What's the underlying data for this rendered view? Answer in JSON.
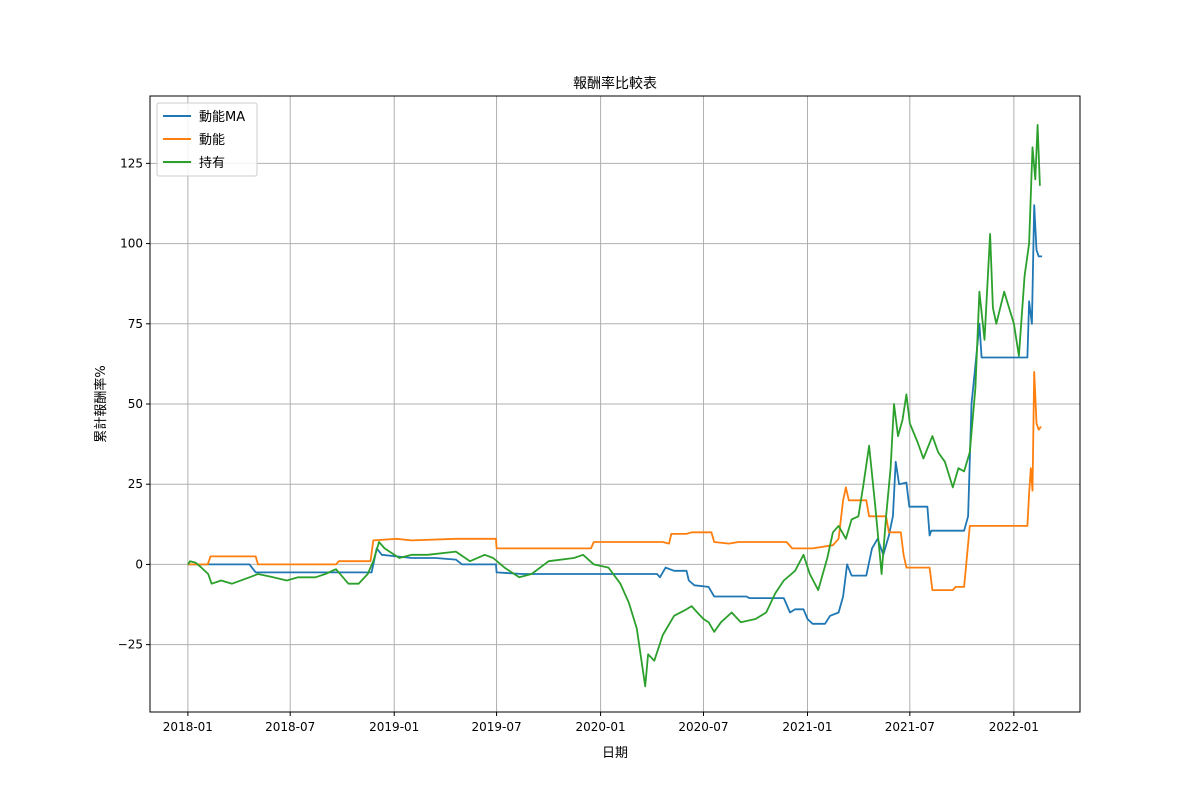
{
  "chart_data": {
    "type": "line",
    "title": "報酬率比較表",
    "xlabel": "日期",
    "ylabel": "累計報酬率%",
    "xlim": [
      "2017-10-26",
      "2022-04-28"
    ],
    "ylim": [
      -46,
      146
    ],
    "x_ticks": [
      "2018-01",
      "2018-07",
      "2019-01",
      "2019-07",
      "2020-01",
      "2020-07",
      "2021-01",
      "2021-07",
      "2022-01"
    ],
    "y_ticks": [
      -25,
      0,
      25,
      50,
      75,
      100,
      125
    ],
    "grid": true,
    "legend_position": "top-left",
    "series": [
      {
        "name": "動能MA",
        "color": "#1f77b4",
        "points": [
          [
            "2018-01-01",
            0
          ],
          [
            "2018-02-10",
            0
          ],
          [
            "2018-04-20",
            0
          ],
          [
            "2018-05-01",
            -2.5
          ],
          [
            "2018-10-20",
            -2.5
          ],
          [
            "2018-11-22",
            -2.5
          ],
          [
            "2018-12-01",
            5
          ],
          [
            "2018-12-10",
            3
          ],
          [
            "2019-01-05",
            2.5
          ],
          [
            "2019-02-01",
            2
          ],
          [
            "2019-03-15",
            2
          ],
          [
            "2019-04-20",
            1.5
          ],
          [
            "2019-05-01",
            0
          ],
          [
            "2019-06-30",
            0
          ],
          [
            "2019-07-01",
            -2.5
          ],
          [
            "2019-08-15",
            -3
          ],
          [
            "2020-01-01",
            -3
          ],
          [
            "2020-04-10",
            -3
          ],
          [
            "2020-04-15",
            -4
          ],
          [
            "2020-04-25",
            -1
          ],
          [
            "2020-05-10",
            -2
          ],
          [
            "2020-06-01",
            -2
          ],
          [
            "2020-06-05",
            -5
          ],
          [
            "2020-06-15",
            -6.5
          ],
          [
            "2020-07-10",
            -7
          ],
          [
            "2020-07-20",
            -10
          ],
          [
            "2020-09-15",
            -10
          ],
          [
            "2020-09-20",
            -10.5
          ],
          [
            "2020-11-20",
            -10.5
          ],
          [
            "2020-12-01",
            -15
          ],
          [
            "2020-12-10",
            -14
          ],
          [
            "2020-12-25",
            -14
          ],
          [
            "2021-01-01",
            -17
          ],
          [
            "2021-01-10",
            -18.5
          ],
          [
            "2021-02-01",
            -18.5
          ],
          [
            "2021-02-10",
            -16
          ],
          [
            "2021-02-25",
            -15
          ],
          [
            "2021-03-05",
            -10
          ],
          [
            "2021-03-12",
            0
          ],
          [
            "2021-03-20",
            -3.5
          ],
          [
            "2021-04-15",
            -3.5
          ],
          [
            "2021-04-25",
            5
          ],
          [
            "2021-05-05",
            8
          ],
          [
            "2021-05-15",
            3
          ],
          [
            "2021-05-25",
            9
          ],
          [
            "2021-06-01",
            15
          ],
          [
            "2021-06-06",
            32
          ],
          [
            "2021-06-12",
            25
          ],
          [
            "2021-06-25",
            25.5
          ],
          [
            "2021-06-30",
            18
          ],
          [
            "2021-08-01",
            18
          ],
          [
            "2021-08-05",
            9
          ],
          [
            "2021-08-08",
            10.5
          ],
          [
            "2021-10-05",
            10.5
          ],
          [
            "2021-10-12",
            15
          ],
          [
            "2021-10-18",
            50
          ],
          [
            "2021-10-25",
            62
          ],
          [
            "2021-11-01",
            75
          ],
          [
            "2021-11-05",
            64.5
          ],
          [
            "2022-01-25",
            64.5
          ],
          [
            "2022-01-28",
            82
          ],
          [
            "2022-02-02",
            75
          ],
          [
            "2022-02-06",
            112
          ],
          [
            "2022-02-10",
            98
          ],
          [
            "2022-02-14",
            96
          ],
          [
            "2022-02-20",
            96
          ]
        ]
      },
      {
        "name": "動能",
        "color": "#ff7f0e",
        "points": [
          [
            "2018-01-01",
            0
          ],
          [
            "2018-02-05",
            0
          ],
          [
            "2018-02-10",
            2.5
          ],
          [
            "2018-05-01",
            2.5
          ],
          [
            "2018-05-05",
            0
          ],
          [
            "2018-09-20",
            0
          ],
          [
            "2018-09-25",
            1
          ],
          [
            "2018-11-20",
            1
          ],
          [
            "2018-11-25",
            7.5
          ],
          [
            "2019-01-05",
            8
          ],
          [
            "2019-02-01",
            7.5
          ],
          [
            "2019-04-20",
            8
          ],
          [
            "2019-06-01",
            8
          ],
          [
            "2019-06-30",
            8
          ],
          [
            "2019-07-01",
            5
          ],
          [
            "2019-12-15",
            5
          ],
          [
            "2019-12-20",
            7
          ],
          [
            "2020-04-20",
            7
          ],
          [
            "2020-05-01",
            6.5
          ],
          [
            "2020-05-05",
            9.5
          ],
          [
            "2020-06-01",
            9.5
          ],
          [
            "2020-06-10",
            10
          ],
          [
            "2020-07-15",
            10
          ],
          [
            "2020-07-20",
            7
          ],
          [
            "2020-08-15",
            6.5
          ],
          [
            "2020-09-01",
            7
          ],
          [
            "2020-11-25",
            7
          ],
          [
            "2020-12-05",
            5
          ],
          [
            "2021-01-10",
            5
          ],
          [
            "2021-02-15",
            6
          ],
          [
            "2021-02-25",
            8
          ],
          [
            "2021-03-05",
            20
          ],
          [
            "2021-03-10",
            24
          ],
          [
            "2021-03-15",
            20
          ],
          [
            "2021-04-15",
            20
          ],
          [
            "2021-04-20",
            15
          ],
          [
            "2021-05-20",
            15
          ],
          [
            "2021-05-25",
            10
          ],
          [
            "2021-06-15",
            10
          ],
          [
            "2021-06-20",
            3
          ],
          [
            "2021-06-25",
            -1
          ],
          [
            "2021-08-05",
            -1
          ],
          [
            "2021-08-10",
            -8
          ],
          [
            "2021-09-15",
            -8
          ],
          [
            "2021-09-20",
            -7
          ],
          [
            "2021-10-05",
            -7
          ],
          [
            "2021-10-15",
            12
          ],
          [
            "2022-01-25",
            12
          ],
          [
            "2022-01-28",
            22
          ],
          [
            "2022-01-31",
            30
          ],
          [
            "2022-02-03",
            23
          ],
          [
            "2022-02-06",
            60
          ],
          [
            "2022-02-10",
            44
          ],
          [
            "2022-02-14",
            42
          ],
          [
            "2022-02-18",
            43
          ]
        ]
      },
      {
        "name": "持有",
        "color": "#2ca02c",
        "points": [
          [
            "2018-01-01",
            0
          ],
          [
            "2018-01-05",
            1
          ],
          [
            "2018-01-15",
            0.5
          ],
          [
            "2018-01-25",
            -1
          ],
          [
            "2018-02-06",
            -3
          ],
          [
            "2018-02-12",
            -6
          ],
          [
            "2018-03-01",
            -5
          ],
          [
            "2018-03-20",
            -6
          ],
          [
            "2018-04-20",
            -4
          ],
          [
            "2018-05-05",
            -3
          ],
          [
            "2018-06-01",
            -4
          ],
          [
            "2018-06-25",
            -5
          ],
          [
            "2018-07-15",
            -4
          ],
          [
            "2018-08-15",
            -4
          ],
          [
            "2018-09-01",
            -3
          ],
          [
            "2018-09-20",
            -1.5
          ],
          [
            "2018-10-12",
            -6
          ],
          [
            "2018-10-30",
            -6
          ],
          [
            "2018-11-15",
            -3
          ],
          [
            "2018-11-25",
            1
          ],
          [
            "2018-12-05",
            7
          ],
          [
            "2018-12-15",
            5
          ],
          [
            "2019-01-10",
            2
          ],
          [
            "2019-02-01",
            3
          ],
          [
            "2019-03-01",
            3
          ],
          [
            "2019-04-20",
            4
          ],
          [
            "2019-05-15",
            1
          ],
          [
            "2019-06-10",
            3
          ],
          [
            "2019-06-25",
            2
          ],
          [
            "2019-07-15",
            -1
          ],
          [
            "2019-08-10",
            -4
          ],
          [
            "2019-09-01",
            -3
          ],
          [
            "2019-10-01",
            1
          ],
          [
            "2019-11-15",
            2
          ],
          [
            "2019-12-01",
            3
          ],
          [
            "2019-12-20",
            0
          ],
          [
            "2020-01-15",
            -1
          ],
          [
            "2020-02-05",
            -6
          ],
          [
            "2020-02-20",
            -12
          ],
          [
            "2020-03-05",
            -20
          ],
          [
            "2020-03-20",
            -38
          ],
          [
            "2020-03-25",
            -28
          ],
          [
            "2020-04-05",
            -30
          ],
          [
            "2020-04-20",
            -22
          ],
          [
            "2020-05-10",
            -16
          ],
          [
            "2020-06-01",
            -14
          ],
          [
            "2020-06-10",
            -13
          ],
          [
            "2020-06-20",
            -15
          ],
          [
            "2020-07-01",
            -17
          ],
          [
            "2020-07-10",
            -18
          ],
          [
            "2020-07-20",
            -21
          ],
          [
            "2020-08-01",
            -18
          ],
          [
            "2020-08-20",
            -15
          ],
          [
            "2020-09-05",
            -18
          ],
          [
            "2020-10-01",
            -17
          ],
          [
            "2020-10-20",
            -15
          ],
          [
            "2020-11-05",
            -9
          ],
          [
            "2020-11-20",
            -5
          ],
          [
            "2020-12-10",
            -2
          ],
          [
            "2020-12-25",
            3
          ],
          [
            "2021-01-05",
            -3
          ],
          [
            "2021-01-20",
            -8
          ],
          [
            "2021-02-05",
            2
          ],
          [
            "2021-02-15",
            10
          ],
          [
            "2021-02-25",
            12
          ],
          [
            "2021-03-10",
            8
          ],
          [
            "2021-03-20",
            14
          ],
          [
            "2021-04-01",
            15
          ],
          [
            "2021-04-10",
            25
          ],
          [
            "2021-04-20",
            37
          ],
          [
            "2021-05-01",
            18
          ],
          [
            "2021-05-12",
            -3
          ],
          [
            "2021-05-20",
            15
          ],
          [
            "2021-05-28",
            30
          ],
          [
            "2021-06-03",
            50
          ],
          [
            "2021-06-10",
            40
          ],
          [
            "2021-06-18",
            45
          ],
          [
            "2021-06-25",
            53
          ],
          [
            "2021-07-01",
            44
          ],
          [
            "2021-07-15",
            38
          ],
          [
            "2021-07-25",
            33
          ],
          [
            "2021-08-10",
            40
          ],
          [
            "2021-08-20",
            35
          ],
          [
            "2021-09-01",
            32
          ],
          [
            "2021-09-15",
            24
          ],
          [
            "2021-09-25",
            30
          ],
          [
            "2021-10-05",
            29
          ],
          [
            "2021-10-15",
            35
          ],
          [
            "2021-10-25",
            55
          ],
          [
            "2021-11-01",
            85
          ],
          [
            "2021-11-10",
            70
          ],
          [
            "2021-11-20",
            103
          ],
          [
            "2021-11-25",
            80
          ],
          [
            "2021-12-01",
            75
          ],
          [
            "2021-12-15",
            85
          ],
          [
            "2022-01-01",
            75
          ],
          [
            "2022-01-10",
            65
          ],
          [
            "2022-01-20",
            90
          ],
          [
            "2022-01-28",
            100
          ],
          [
            "2022-02-03",
            130
          ],
          [
            "2022-02-08",
            120
          ],
          [
            "2022-02-12",
            137
          ],
          [
            "2022-02-16",
            118
          ]
        ]
      }
    ]
  }
}
